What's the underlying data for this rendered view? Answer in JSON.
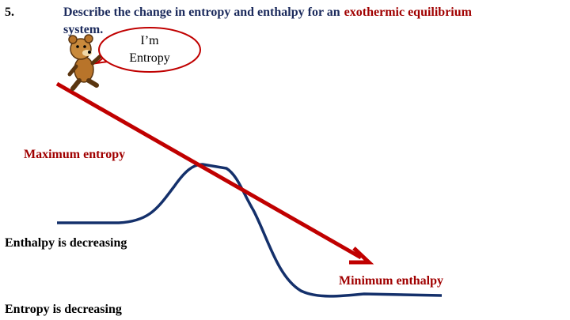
{
  "question": {
    "number": "5.",
    "text": "Describe the change in entropy and enthalpy for an",
    "highlight": "exothermic equilibrium",
    "end": "system."
  },
  "bubble": {
    "line1": "I’m",
    "line2": "Entropy"
  },
  "labels": {
    "max_entropy": "Maximum entropy",
    "enthalpy_decreasing": "Enthalpy is decreasing",
    "min_enthalpy": "Minimum enthalpy",
    "entropy_decreasing": "Entropy is decreasing"
  }
}
